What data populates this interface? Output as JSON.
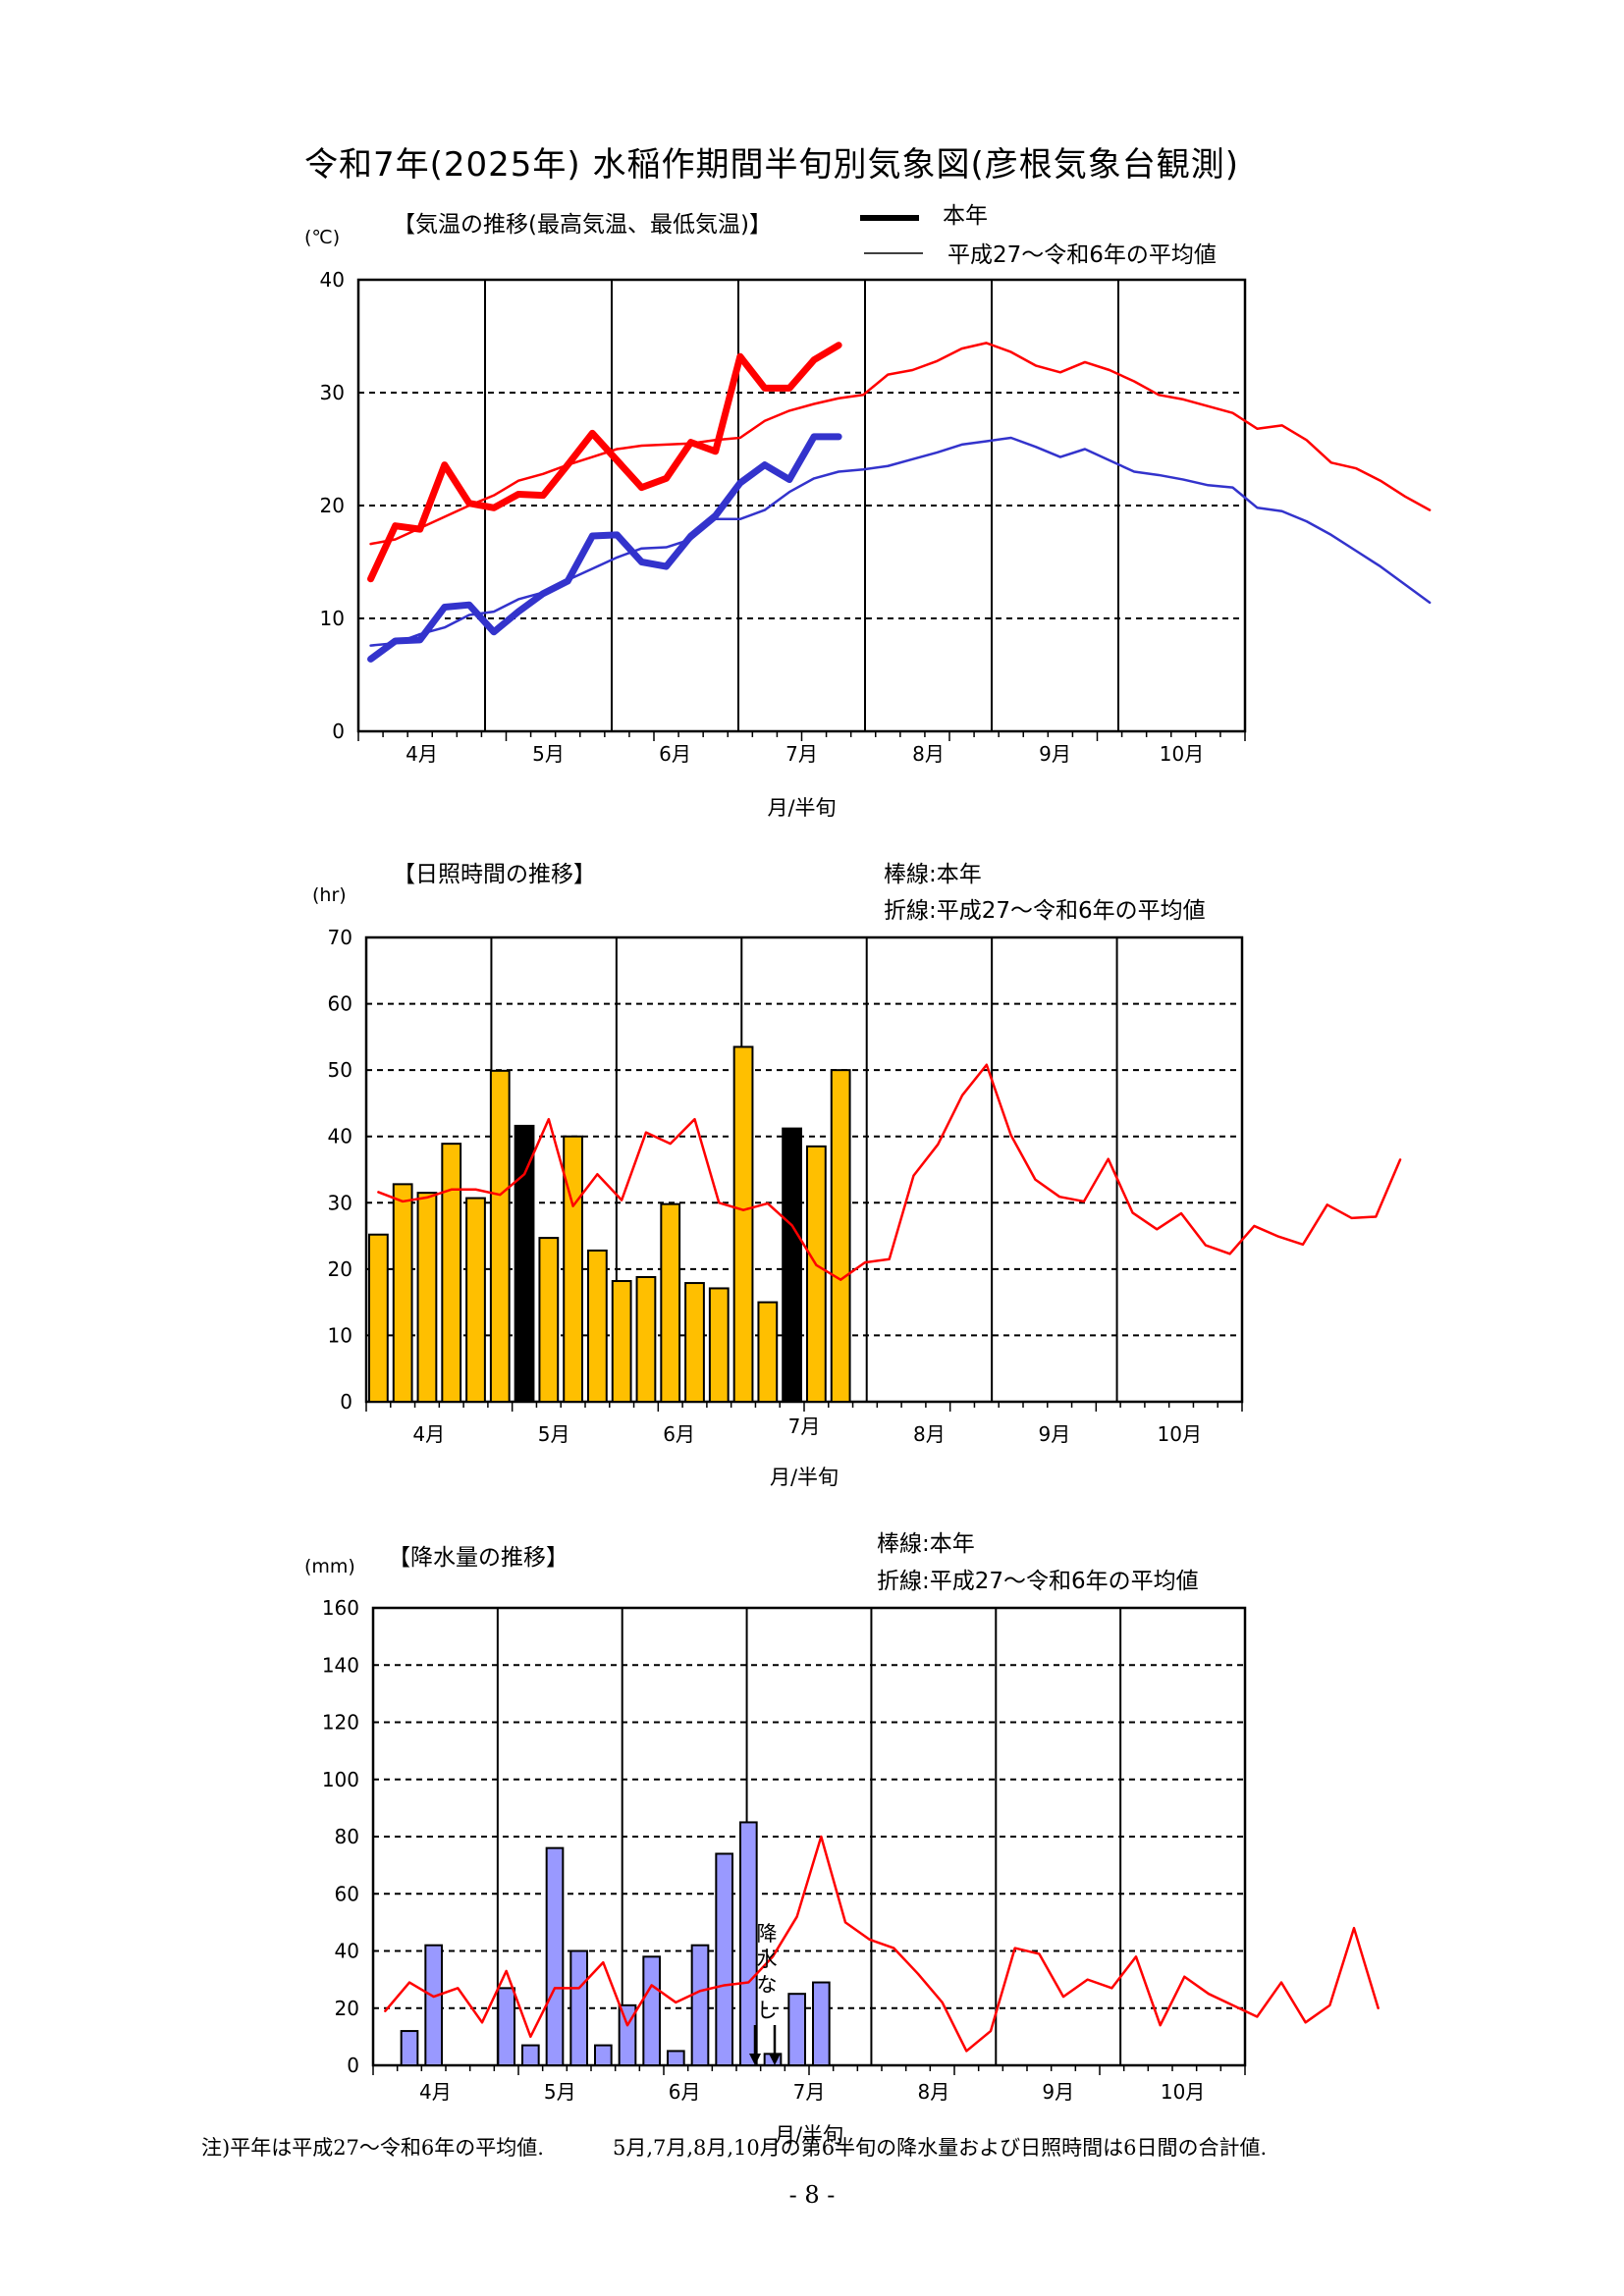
{
  "page_title": "令和7年(2025年)  水稲作期間半旬別気象図(彦根気象台観測)",
  "note": {
    "left": "注)平年は平成27～令和6年の平均値.",
    "right": "5月,7月,8月,10月の第6半旬の降水量および日照時間は6日間の合計値."
  },
  "page_number": "- 8 -",
  "colors": {
    "current_high": "#ff0000",
    "current_low": "#3333cc",
    "normal_high": "#ff0000",
    "normal_low": "#3333cc",
    "sun_bar": "#ffbf00",
    "sun_bar_dark": "#000000",
    "rain_bar": "#9999ff",
    "normal_line": "#ff0000"
  },
  "chart_data": [
    {
      "type": "line",
      "title": "【気温の推移(最高気温、最低気温)】",
      "unit": "(℃)",
      "xlabel": "月/半旬",
      "months": [
        "4月",
        "5月",
        "6月",
        "7月",
        "8月",
        "9月",
        "10月"
      ],
      "legend": {
        "current": "本年",
        "normal": "平成27～令和6年の平均値"
      },
      "ylim": [
        0,
        40
      ],
      "yticks": [
        0,
        10,
        20,
        30,
        40
      ],
      "grid": true,
      "series": [
        {
          "name": "本年",
          "kind": "high",
          "values": [
            13.5,
            18.2,
            17.9,
            23.6,
            20.2,
            19.8,
            21.0,
            20.9,
            23.6,
            26.4,
            24.0,
            21.6,
            22.4,
            25.6,
            24.8,
            33.2,
            30.4,
            30.4,
            32.9,
            34.2
          ]
        },
        {
          "name": "本年",
          "kind": "low",
          "values": [
            6.4,
            8.0,
            8.1,
            11.0,
            11.2,
            8.8,
            10.6,
            12.2,
            13.3,
            17.3,
            17.4,
            15.0,
            14.6,
            17.3,
            19.1,
            22.0,
            23.6,
            22.3,
            26.1,
            26.1
          ]
        },
        {
          "name": "平成27～令和6年の平均値",
          "kind": "high",
          "values": [
            16.6,
            17.0,
            18.0,
            19.0,
            20.0,
            20.9,
            22.2,
            22.8,
            23.6,
            24.3,
            25.0,
            25.3,
            25.4,
            25.5,
            25.8,
            26.0,
            27.5,
            28.4,
            29.0,
            29.5,
            29.8,
            31.6,
            32.0,
            32.8,
            33.9,
            34.4,
            33.6,
            32.4,
            31.8,
            32.7,
            32.0,
            31.0,
            29.8,
            29.4,
            28.8,
            28.2,
            26.8,
            27.1,
            25.8,
            23.8,
            23.3,
            22.2,
            20.8,
            19.6
          ]
        },
        {
          "name": "平成27～令和6年の平均値",
          "kind": "low",
          "values": [
            7.6,
            7.8,
            8.6,
            9.2,
            10.3,
            10.6,
            11.7,
            12.3,
            13.4,
            14.4,
            15.4,
            16.2,
            16.3,
            17.0,
            18.8,
            18.8,
            19.6,
            21.2,
            22.4,
            23.0,
            23.2,
            23.5,
            24.1,
            24.7,
            25.4,
            25.7,
            26.0,
            25.2,
            24.3,
            25.0,
            24.0,
            23.0,
            22.7,
            22.3,
            21.8,
            21.6,
            19.8,
            19.5,
            18.6,
            17.4,
            16.0,
            14.6,
            13.0,
            11.4
          ]
        }
      ]
    },
    {
      "type": "bar",
      "title": "【日照時間の推移】",
      "unit": "(hr)",
      "xlabel": "月/半旬",
      "months": [
        "4月",
        "5月",
        "6月",
        "7月",
        "8月",
        "9月",
        "10月"
      ],
      "legend": {
        "bar": "棒線:本年",
        "line": "折線:平成27～令和6年の平均値"
      },
      "ylim": [
        0,
        70
      ],
      "yticks": [
        0,
        10,
        20,
        30,
        40,
        50,
        60,
        70
      ],
      "grid": true,
      "series": [
        {
          "name": "本年",
          "values": [
            25.2,
            32.8,
            31.5,
            38.9,
            30.7,
            49.9,
            41.6,
            24.7,
            40.0,
            22.8,
            18.2,
            18.8,
            29.8,
            17.9,
            17.1,
            53.5,
            15.0,
            41.2,
            38.5,
            50.0
          ],
          "dark_bars": [
            6,
            17
          ]
        },
        {
          "name": "平成27～令和6年の平均値",
          "values": [
            31.6,
            30.2,
            30.8,
            32.0,
            32.0,
            31.2,
            34.3,
            42.6,
            29.5,
            34.3,
            30.4,
            40.6,
            38.9,
            42.6,
            30.0,
            28.9,
            29.9,
            26.6,
            20.6,
            18.4,
            21.0,
            21.5,
            34.1,
            38.8,
            46.2,
            50.8,
            40.2,
            33.5,
            30.9,
            30.2,
            36.6,
            28.5,
            26.0,
            28.4,
            23.6,
            22.3,
            26.5,
            24.9,
            23.7,
            29.7,
            27.7,
            27.9,
            36.5
          ]
        }
      ]
    },
    {
      "type": "bar",
      "title": "【降水量の推移】",
      "unit": "(mm)",
      "xlabel": "月/半旬",
      "months": [
        "4月",
        "5月",
        "6月",
        "7月",
        "8月",
        "9月",
        "10月"
      ],
      "legend": {
        "bar": "棒線:本年",
        "line": "折線:平成27～令和6年の平均値"
      },
      "ylim": [
        0,
        160
      ],
      "yticks": [
        0,
        20,
        40,
        60,
        80,
        100,
        120,
        140,
        160
      ],
      "grid": true,
      "annotation": "降水なし",
      "series": [
        {
          "name": "本年",
          "values": [
            0,
            12,
            42,
            0,
            0,
            27,
            7,
            76,
            40,
            7,
            21,
            38,
            5,
            42,
            74,
            85,
            4,
            25,
            29,
            0
          ]
        },
        {
          "name": "平成27～令和6年の平均値",
          "values": [
            19,
            29,
            24,
            27,
            15,
            33,
            10,
            27,
            27,
            36,
            14,
            28,
            22,
            26,
            28,
            29,
            38,
            52,
            80,
            50,
            44,
            41,
            32,
            22,
            5,
            12,
            41,
            39,
            24,
            30,
            27,
            38,
            14,
            31,
            25,
            21,
            17,
            29,
            15,
            21,
            48,
            20
          ]
        }
      ]
    }
  ]
}
